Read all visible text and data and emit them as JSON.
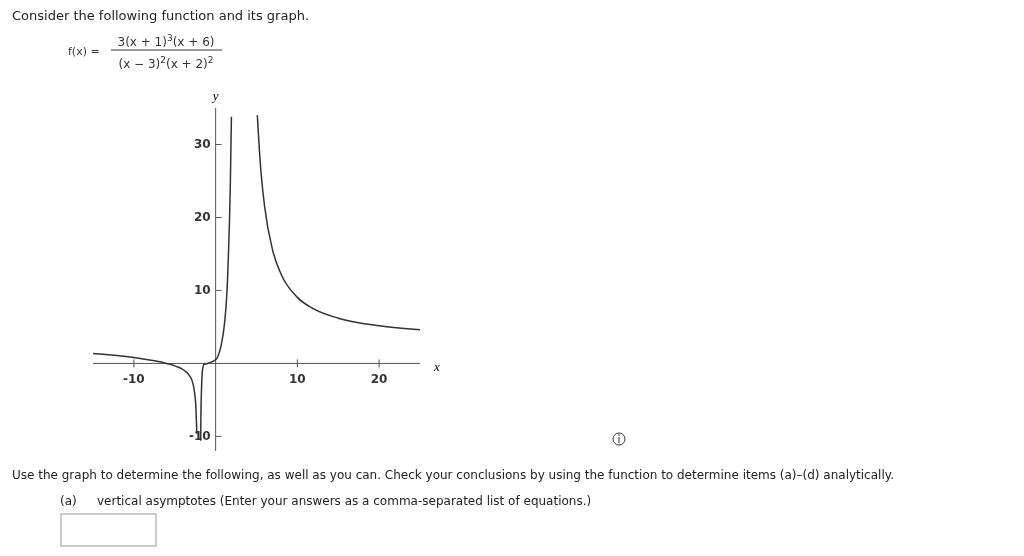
{
  "chart_data": {
    "type": "line",
    "title": "Consider the following function and its graph.",
    "xlabel": "x",
    "ylabel": "y",
    "x": [
      -15,
      -10,
      -6,
      -5,
      -4,
      -3,
      -2.5,
      -2.4,
      -2.3,
      null,
      -1.83,
      -1.8,
      -1.6,
      -1.4,
      -1,
      0,
      1,
      1.5,
      1.8,
      1.9,
      1.93,
      null,
      5.1,
      5.5,
      6,
      7,
      8,
      10,
      12,
      15,
      20,
      25
    ],
    "series": [
      {
        "color": "#333333",
        "values": [
          1.35,
          0.81,
          0,
          -0.33,
          -0.83,
          -2,
          -4.69,
          -6.35,
          -9.65,
          null,
          -10.6,
          -7,
          -0.84,
          -0.13,
          0,
          0.5,
          4.67,
          12.76,
          24.7,
          31.4,
          33.8,
          null,
          34,
          26.9,
          21.44,
          15.41,
          12.25,
          9.05,
          7.47,
          6.2,
          5.16,
          4.63
        ]
      }
    ],
    "xlim": [
      -15,
      25
    ],
    "ylim": [
      -12,
      35
    ],
    "xticks": [
      -10,
      10,
      20
    ],
    "yticks": [
      -10,
      10,
      20,
      30
    ],
    "grid": false,
    "marker": "none",
    "line_style": "solid",
    "annotations": [
      "f(x) =",
      "3(x + 1)$^{3}$(x + 6)",
      "(x − 3)$^{2}$(x + 2)$^{2}$",
      "Use the graph to determine the following, as well as you can. Check your conclusions by using the function to determine items (a)–(d) analytically.",
      "(a)",
      "vertical asymptotes (Enter your answers as a comma-separated list of equations.)"
    ]
  }
}
